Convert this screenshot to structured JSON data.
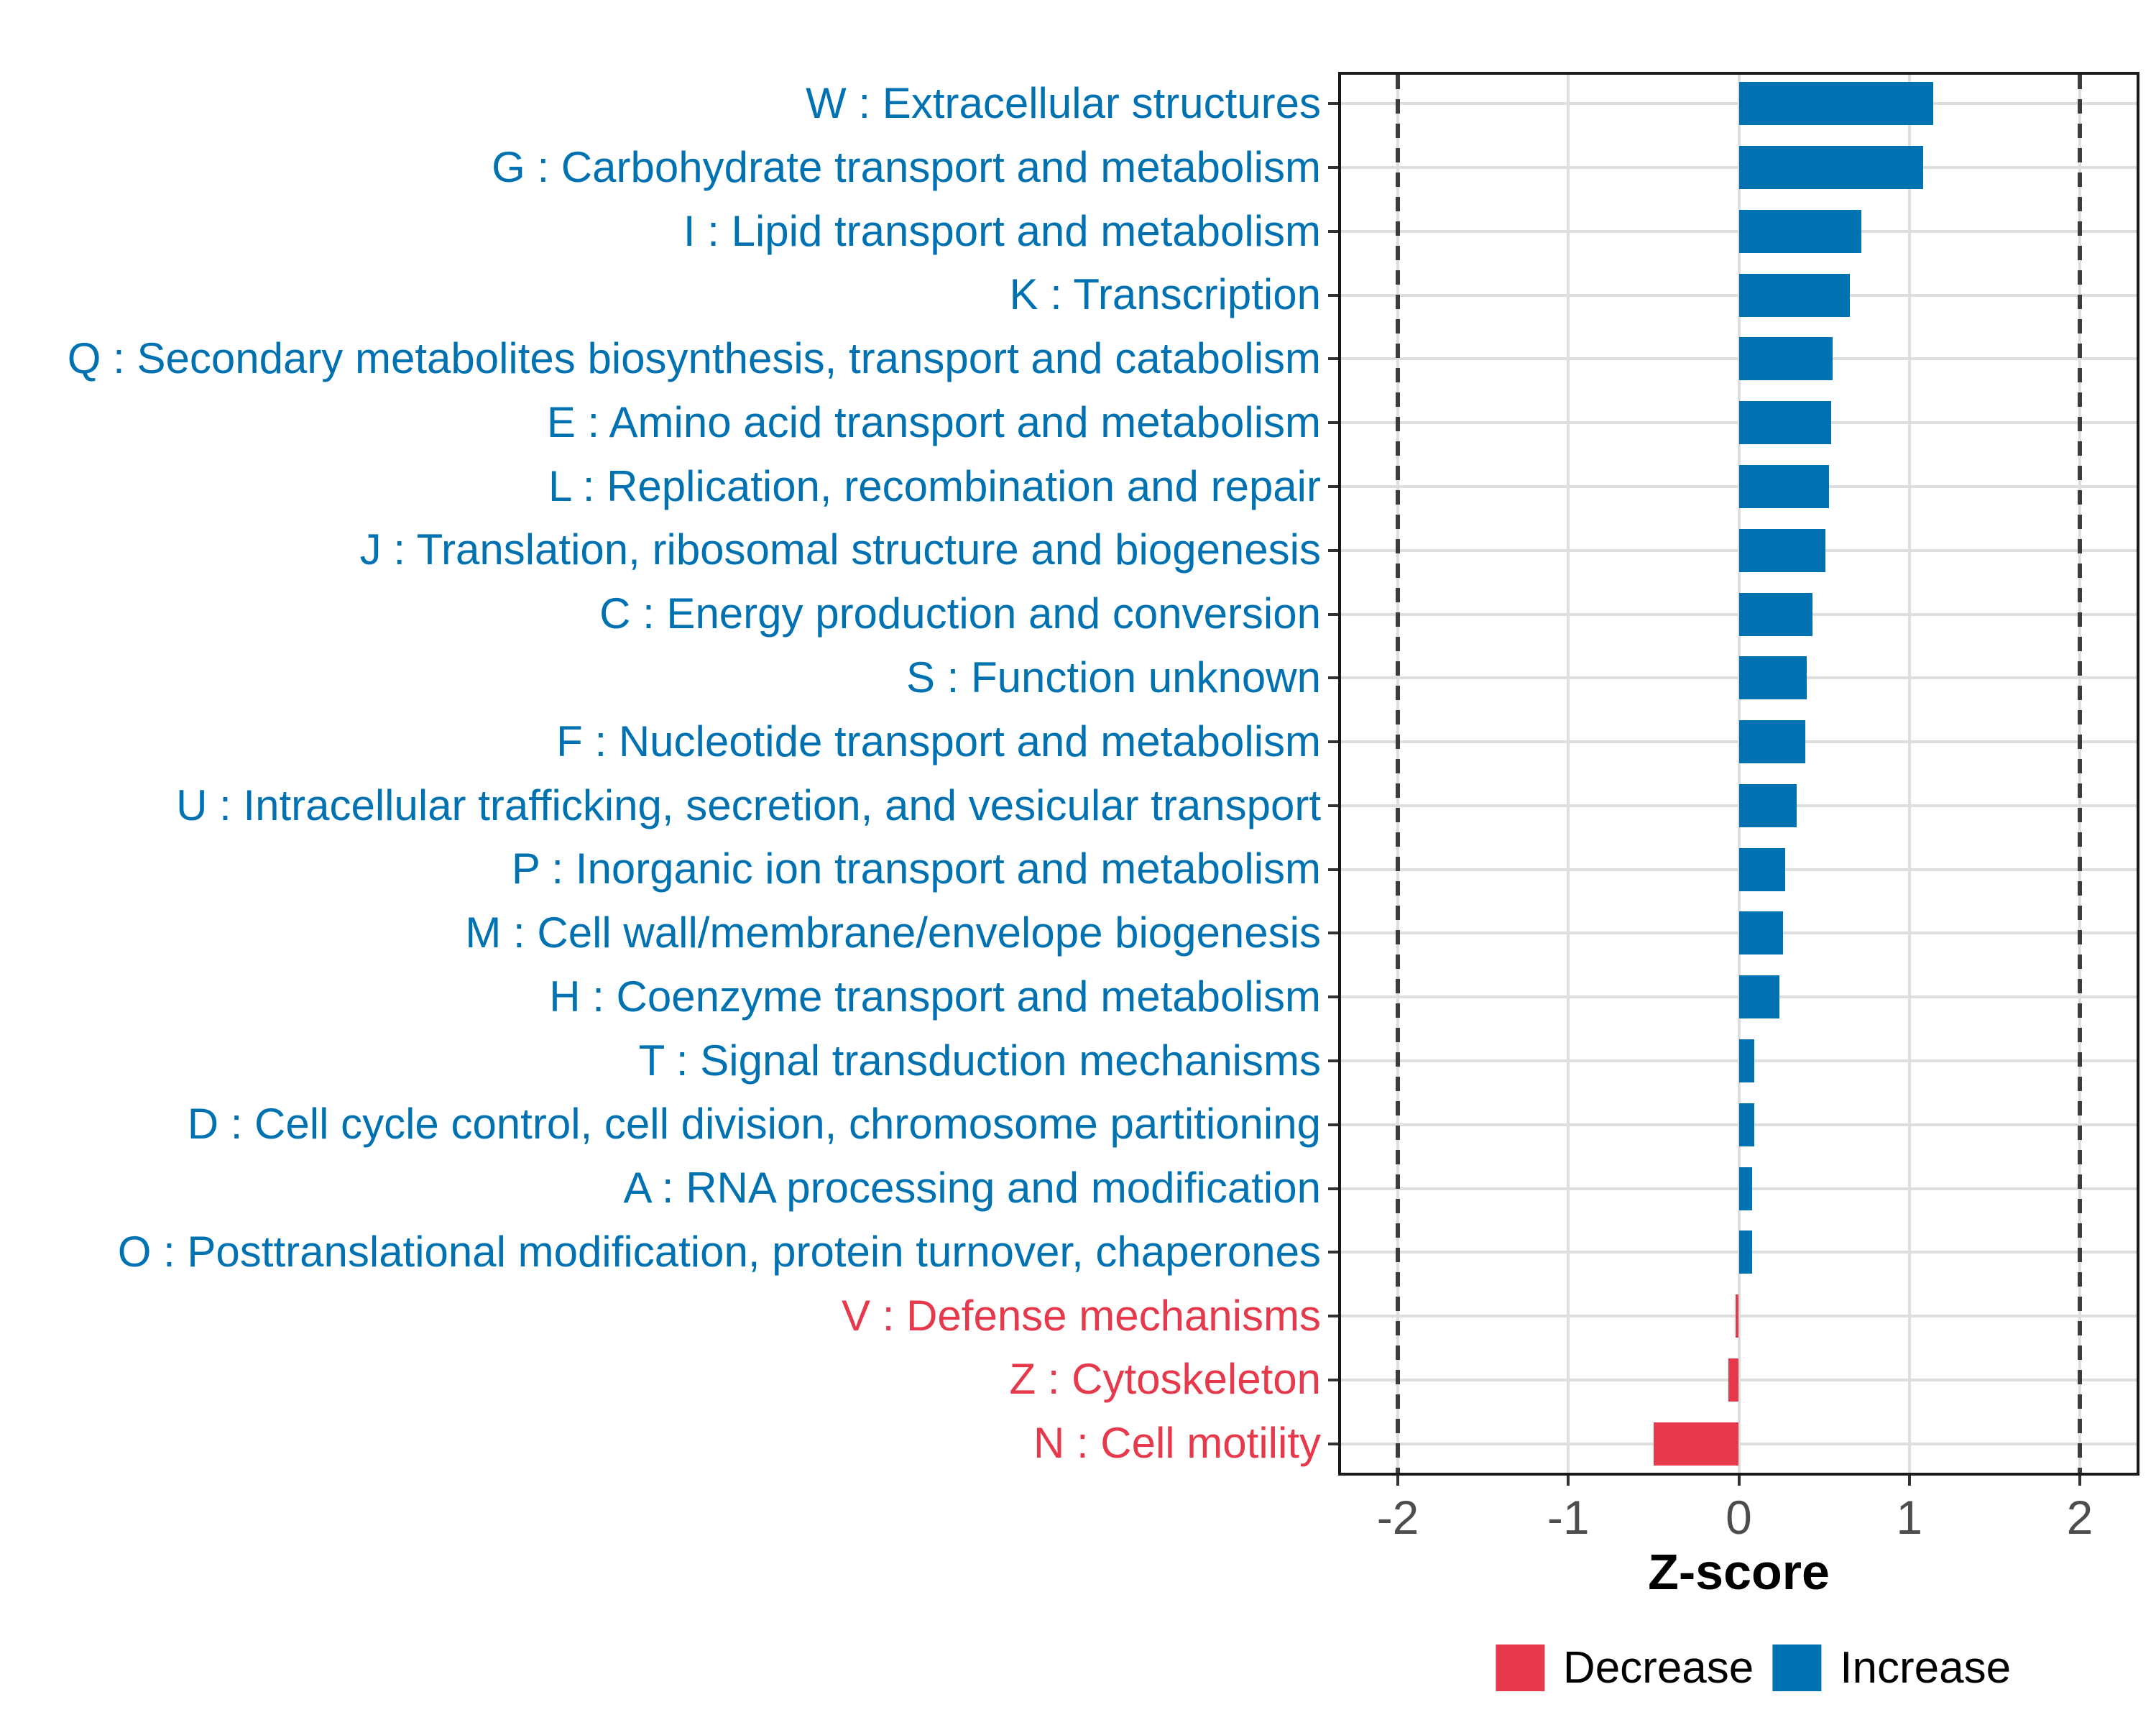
{
  "chart_data": {
    "type": "bar",
    "orientation": "horizontal",
    "title": "",
    "xlabel": "Z-score",
    "ylabel": "",
    "xlim": [
      -2.35,
      2.35
    ],
    "x_ticks": [
      "-2",
      "-1",
      "0",
      "1",
      "2"
    ],
    "x_tick_values": [
      -2,
      -1,
      0,
      1,
      2
    ],
    "threshold_lines": [
      -2,
      2
    ],
    "grid": true,
    "legend_position": "bottom-right",
    "categories": [
      "W : Extracellular structures",
      "G : Carbohydrate transport and metabolism",
      "I : Lipid transport and metabolism",
      "K : Transcription",
      "Q : Secondary metabolites biosynthesis, transport and catabolism",
      "E : Amino acid transport and metabolism",
      "L : Replication, recombination and repair",
      "J : Translation, ribosomal structure and biogenesis",
      "C : Energy production and conversion",
      "S : Function unknown",
      "F : Nucleotide transport and metabolism",
      "U : Intracellular trafficking, secretion, and vesicular transport",
      "P : Inorganic ion transport and metabolism",
      "M : Cell wall/membrane/envelope biogenesis",
      "H : Coenzyme transport and metabolism",
      "T : Signal transduction mechanisms",
      "D : Cell cycle control, cell division, chromosome partitioning",
      "A : RNA processing and modification",
      "O : Posttranslational modification, protein turnover, chaperones",
      "V : Defense mechanisms",
      "Z : Cytoskeleton",
      "N : Cell motility"
    ],
    "values": [
      1.14,
      1.08,
      0.72,
      0.65,
      0.55,
      0.54,
      0.53,
      0.51,
      0.43,
      0.4,
      0.39,
      0.34,
      0.27,
      0.26,
      0.24,
      0.09,
      0.09,
      0.08,
      0.08,
      -0.02,
      -0.06,
      -0.5
    ],
    "groups": [
      "Increase",
      "Increase",
      "Increase",
      "Increase",
      "Increase",
      "Increase",
      "Increase",
      "Increase",
      "Increase",
      "Increase",
      "Increase",
      "Increase",
      "Increase",
      "Increase",
      "Increase",
      "Increase",
      "Increase",
      "Increase",
      "Increase",
      "Decrease",
      "Decrease",
      "Decrease"
    ]
  },
  "legend": {
    "items": [
      {
        "label": "Decrease",
        "color": "#E6394B"
      },
      {
        "label": "Increase",
        "color": "#0072B2"
      }
    ]
  },
  "colors": {
    "increase": "#0072B2",
    "decrease": "#E6394B",
    "grid": "#DEDEDE",
    "dashed": "#3C3C3C",
    "border": "#1A1A1A",
    "axis_text": "#4D4D4D",
    "tick": "#333333"
  }
}
